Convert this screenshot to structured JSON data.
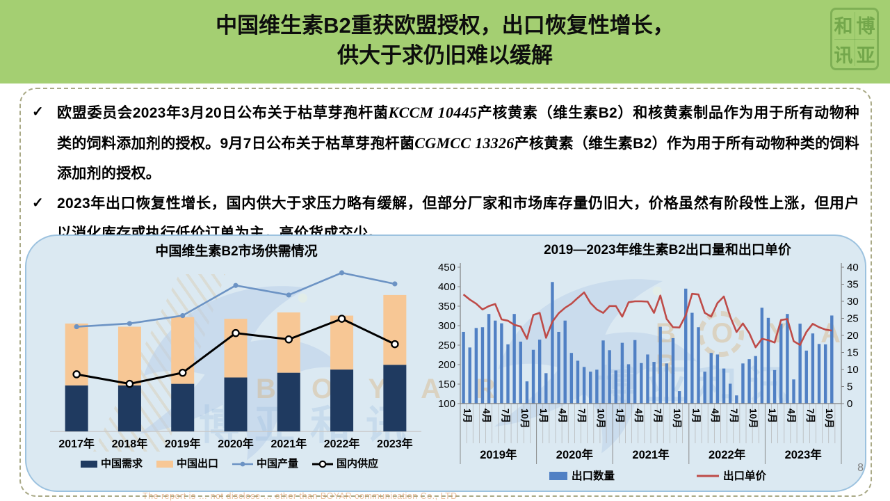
{
  "header": {
    "title_line1": "中国维生素B2重获欧盟授权，出口恢复性增长，",
    "title_line2": "供大于求仍旧难以缓解",
    "logo": {
      "name": "boyar-seal",
      "chars": [
        "和",
        "博",
        "讯",
        "亚"
      ]
    }
  },
  "bullets": [
    {
      "parts": [
        {
          "t": "欧盟委员会2023年3月20日公布关于枯草芽孢杆菌"
        },
        {
          "t": "KCCM 10445",
          "i": true
        },
        {
          "t": "产核黄素（维生素B2）和核黄素制品作为用于所有动物种类的饲料添加剂的授权。9月7日公布关于枯草芽孢杆菌"
        },
        {
          "t": "CGMCC 13326",
          "i": true
        },
        {
          "t": "产核黄素（维生素B2）作为用于所有动物种类的饲料添加剂的授权。"
        }
      ]
    },
    {
      "parts": [
        {
          "t": "2023年出口恢复性增长，国内供大于求压力略有缓解，但部分厂家和市场库存量仍旧大，价格虽然有阶段性上涨，但用户以消化库存或执行低价订单为主，高价货成交少。"
        }
      ]
    }
  ],
  "page_number": "8",
  "watermark": {
    "bottom_text": "The report is … not disclose … other than BOYAR communication Co., LTD",
    "brand_latin": "B O Y A R",
    "brand_cn": "博亚和讯"
  },
  "chart_data": [
    {
      "type": "bar",
      "subtype": "stacked-bar-with-lines",
      "title": "中国维生素B2市场供需情况",
      "categories": [
        "2017年",
        "2018年",
        "2019年",
        "2020年",
        "2021年",
        "2022年",
        "2023年"
      ],
      "y_axis_visible": false,
      "ylim": [
        0,
        110
      ],
      "unit": "relative scale (no axis labels shown in source)",
      "series": [
        {
          "name": "中国需求",
          "type": "bar",
          "stack": true,
          "color": "#1F3A60",
          "values": [
            29,
            29,
            30,
            34,
            37,
            39,
            42
          ]
        },
        {
          "name": "中国出口",
          "type": "bar",
          "stack": true,
          "color": "#F7C795",
          "values": [
            39,
            37,
            42,
            37,
            38,
            34,
            44
          ]
        },
        {
          "name": "中国产量",
          "type": "line",
          "color": "#6C93C4",
          "marker": "dot",
          "values": [
            66,
            68,
            73,
            92,
            86,
            100,
            93
          ]
        },
        {
          "name": "国内供应",
          "type": "line",
          "color": "#000000",
          "marker": "open-circle",
          "values": [
            36,
            30,
            37,
            62,
            58,
            71,
            55
          ]
        }
      ],
      "legend_position": "bottom"
    },
    {
      "type": "bar",
      "subtype": "bar-line-dual-axis",
      "title": "2019—2023年维生素B2出口量和出口单价",
      "x": {
        "years": [
          "2019年",
          "2020年",
          "2021年",
          "2022年",
          "2023年"
        ],
        "labeled_months": [
          "1月",
          "4月",
          "7月",
          "10月"
        ],
        "months_per_year": 12,
        "total_slots": 60,
        "last_month_plotted": "2023年11月"
      },
      "left_axis": {
        "min": 100,
        "max": 450,
        "step": 50,
        "applies_to": "出口数量"
      },
      "right_axis": {
        "min": 0,
        "max": 40,
        "step": 5,
        "applies_to": "出口单价"
      },
      "series": [
        {
          "name": "出口数量",
          "type": "bar",
          "axis": "left",
          "color": "#5080C4",
          "values": [
            284,
            244,
            294,
            296,
            330,
            313,
            306,
            252,
            330,
            259,
            157,
            238,
            264,
            178,
            412,
            284,
            313,
            230,
            210,
            194,
            182,
            187,
            262,
            237,
            185,
            256,
            201,
            263,
            204,
            226,
            207,
            297,
            203,
            268,
            132,
            395,
            333,
            296,
            182,
            230,
            226,
            190,
            151,
            121,
            203,
            214,
            222,
            346,
            320,
            186,
            305,
            330,
            162,
            305,
            236,
            280,
            253,
            252,
            326
          ]
        },
        {
          "name": "出口单价",
          "type": "line",
          "axis": "right",
          "color": "#BE4B48",
          "values": [
            32,
            30.5,
            29.3,
            27.6,
            28.6,
            29.2,
            24.7,
            24.3,
            23.1,
            22.6,
            19,
            26,
            26.6,
            19.3,
            24,
            26.5,
            28.1,
            29.3,
            31,
            32.6,
            29.5,
            27.6,
            26.6,
            28.6,
            28.6,
            25.5,
            29.7,
            30,
            30,
            29.9,
            26.6,
            31.7,
            24.8,
            22.4,
            22.3,
            25.9,
            32.2,
            32,
            26.6,
            25.5,
            29.5,
            31.4,
            25.5,
            21,
            23.5,
            20.7,
            16.5,
            19,
            18.6,
            17.9,
            24.5,
            24.8,
            18.3,
            17.2,
            21,
            23.4,
            22.4,
            21.7,
            21.4
          ]
        }
      ],
      "legend_position": "bottom"
    }
  ]
}
